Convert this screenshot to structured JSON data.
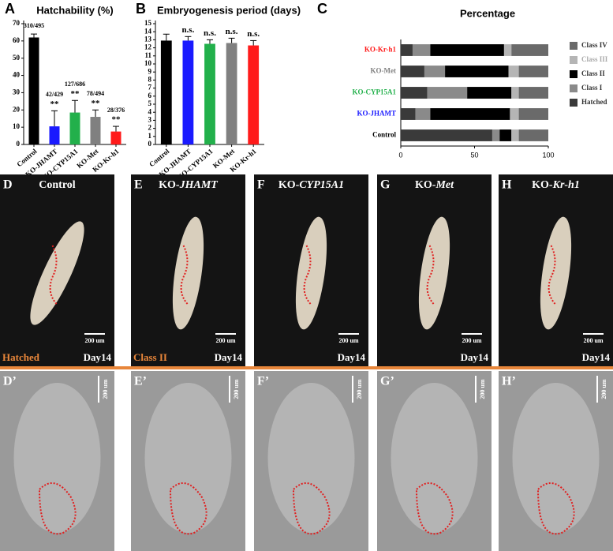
{
  "chart_data": [
    {
      "type": "bar",
      "letter": "A",
      "title": "Hatchability (%)",
      "categories": [
        "Control",
        "KO-JHAMT",
        "KO-CYP15A1",
        "KO-Met",
        "KO-Kr-h1"
      ],
      "values": [
        62,
        10.5,
        18.5,
        16,
        7.5
      ],
      "errors": [
        2,
        9,
        7,
        4,
        3
      ],
      "colors": [
        "#000000",
        "#1a1aff",
        "#22b04b",
        "#808080",
        "#ff1a1a"
      ],
      "ratios": [
        "310/495",
        "42/429",
        "127/686",
        "78/494",
        "28/376"
      ],
      "significance": [
        null,
        "**",
        "**",
        "**",
        "**"
      ],
      "ylim": [
        0,
        70
      ],
      "yticks": [
        0,
        10,
        20,
        30,
        40,
        50,
        60,
        70
      ]
    },
    {
      "type": "bar",
      "letter": "B",
      "title": "Embryogenesis period (days)",
      "categories": [
        "Control",
        "KO-JHAMT",
        "KO-CYP15A1",
        "KO-Met",
        "KO-Kr-h1"
      ],
      "values": [
        12.9,
        12.9,
        12.5,
        12.6,
        12.3
      ],
      "errors": [
        0.8,
        0.5,
        0.5,
        0.6,
        0.6
      ],
      "colors": [
        "#000000",
        "#1a1aff",
        "#22b04b",
        "#808080",
        "#ff1a1a"
      ],
      "significance": [
        null,
        "n.s.",
        "n.s.",
        "n.s.",
        "n.s."
      ],
      "ylim": [
        0,
        15
      ],
      "yticks": [
        0,
        1,
        2,
        3,
        4,
        5,
        6,
        7,
        8,
        9,
        10,
        11,
        12,
        13,
        14,
        15
      ]
    },
    {
      "type": "stacked_hbar",
      "letter": "C",
      "title": "Percentage",
      "categories": [
        "Control",
        "KO-JHAMT",
        "KO-CYP15A1",
        "KO-Met",
        "KO-Kr-h1"
      ],
      "category_colors": [
        "#000000",
        "#1a1aff",
        "#22b04b",
        "#808080",
        "#ff1a1a"
      ],
      "series": [
        {
          "name": "Hatched",
          "color": "#3a3a3a",
          "values": [
            62,
            10,
            18,
            16,
            8
          ]
        },
        {
          "name": "Class I",
          "color": "#8a8a8a",
          "values": [
            5,
            10,
            27,
            14,
            12
          ]
        },
        {
          "name": "Class II",
          "color": "#000000",
          "values": [
            8,
            54,
            30,
            43,
            50
          ]
        },
        {
          "name": "Class III",
          "color": "#b5b5b5",
          "values": [
            5,
            6,
            5,
            7,
            5
          ]
        },
        {
          "name": "Class IV",
          "color": "#6a6a6a",
          "values": [
            20,
            20,
            20,
            20,
            25
          ]
        }
      ],
      "xlim": [
        0,
        100
      ],
      "xticks": [
        0,
        50,
        100
      ]
    }
  ],
  "panels": [
    {
      "letter": "D",
      "label": "Control",
      "status": "Hatched",
      "day": "Day14",
      "scale": "200 um"
    },
    {
      "letter": "E",
      "prefix": "KO-",
      "gene": "JHAMT",
      "status": "Class II",
      "day": "Day14",
      "scale": "200 um"
    },
    {
      "letter": "F",
      "prefix": "KO-",
      "gene": "CYP15A1",
      "day": "Day14",
      "scale": "200 um"
    },
    {
      "letter": "G",
      "prefix": "KO-",
      "gene": "Met",
      "day": "Day14",
      "scale": "200 um"
    },
    {
      "letter": "H",
      "prefix": "KO-",
      "gene": "Kr-h1",
      "day": "Day14",
      "scale": "200 um"
    }
  ],
  "sem_panels": [
    {
      "letter": "D’",
      "scale": "200 um"
    },
    {
      "letter": "E’",
      "scale": "200 um"
    },
    {
      "letter": "F’",
      "scale": "200 um"
    },
    {
      "letter": "G’",
      "scale": "200 um"
    },
    {
      "letter": "H’",
      "scale": "200 um"
    }
  ]
}
